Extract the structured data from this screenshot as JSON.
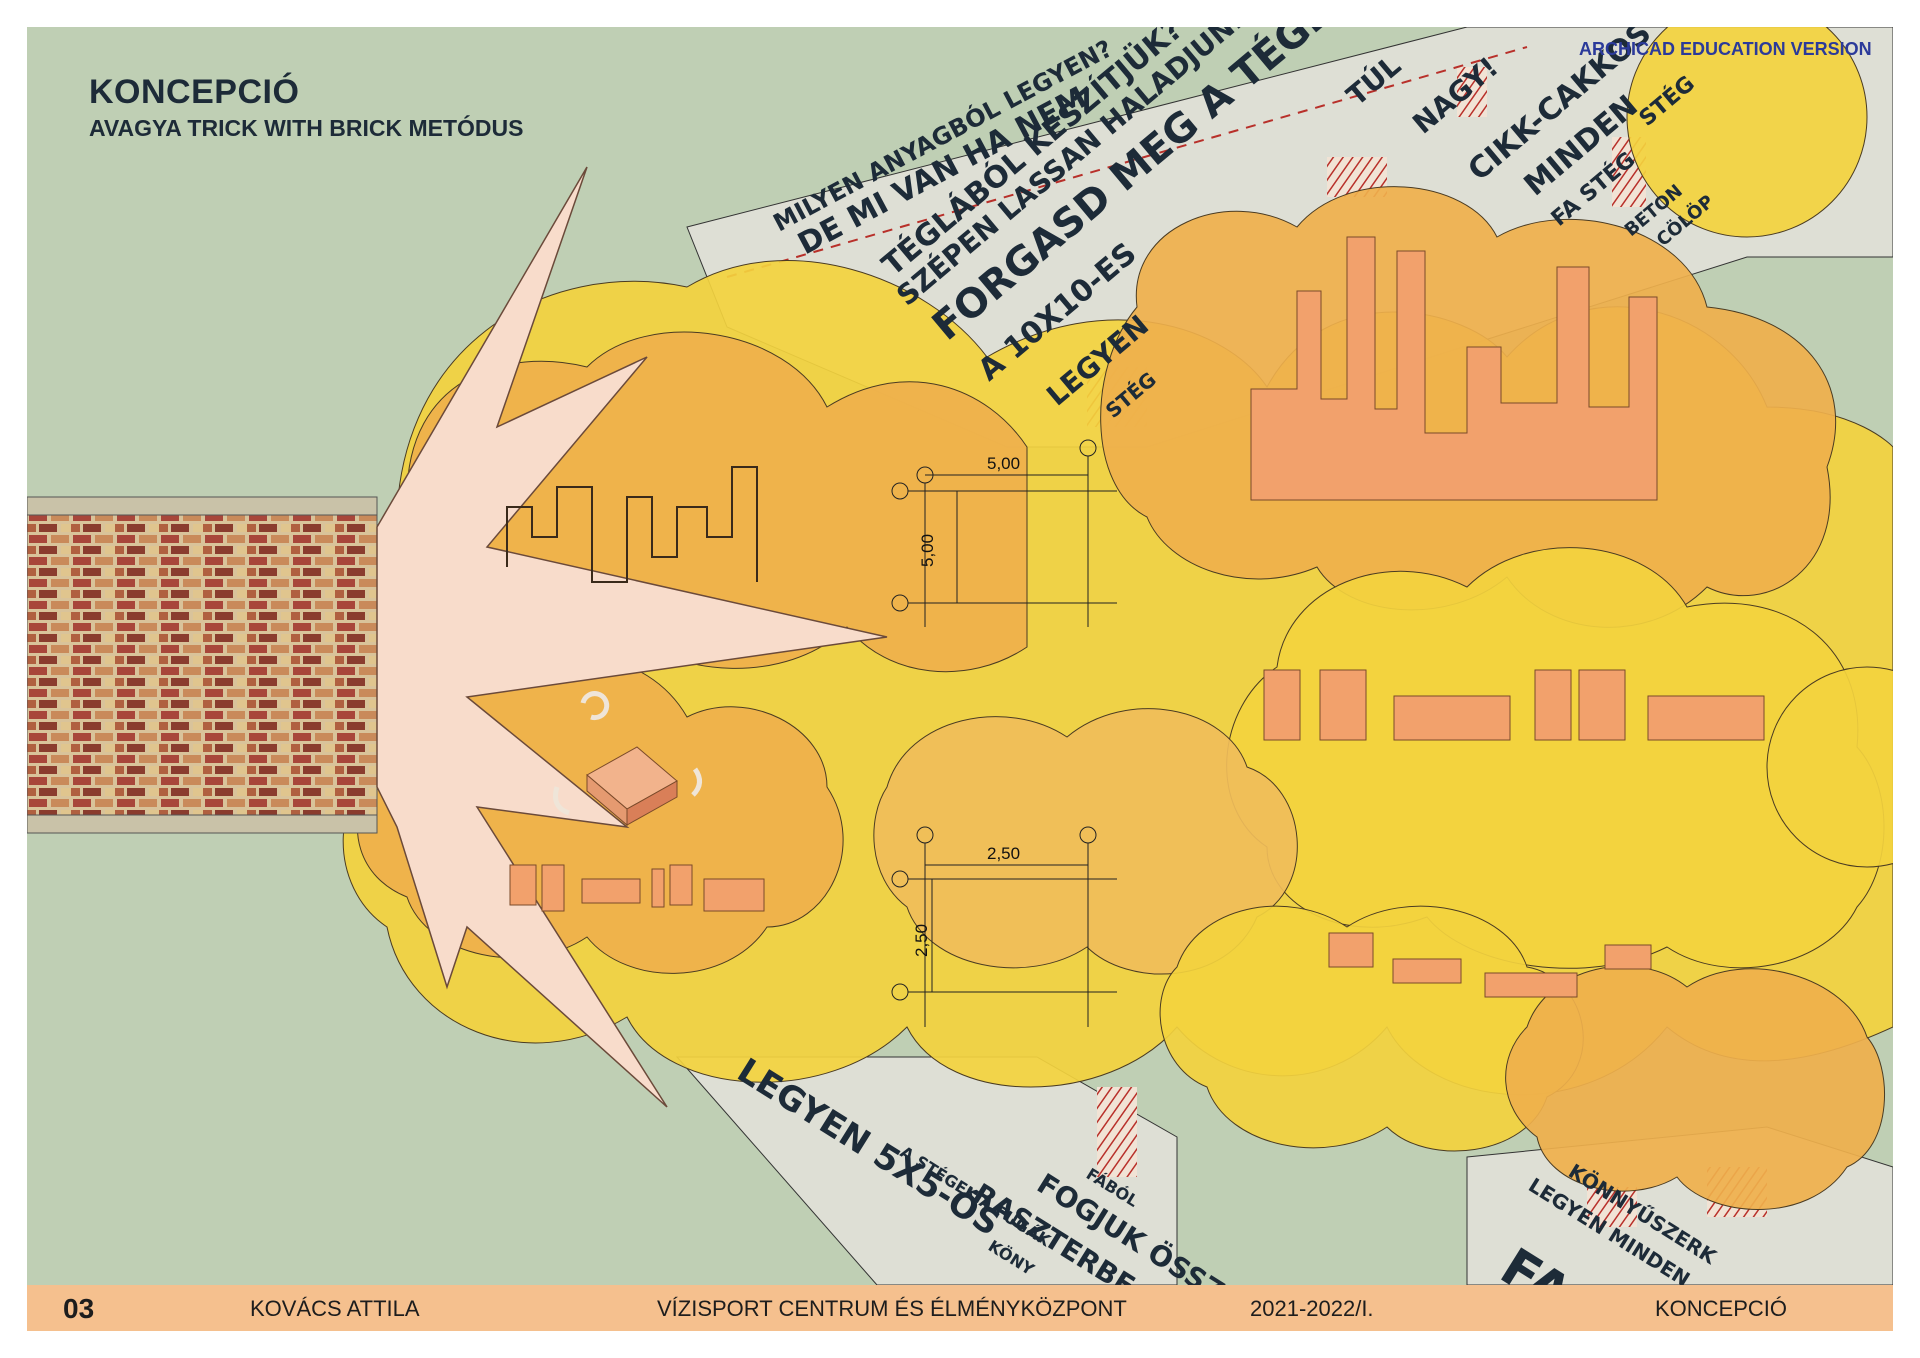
{
  "header": {
    "title": "KONCEPCIÓ",
    "subtitle": "AVAGYA TRICK WITH BRICK METÓDUS",
    "watermark": "ARCHICAD EDUCATION VERSION"
  },
  "dimensions": {
    "large_width": "5,00",
    "large_height": "5,00",
    "small_width": "2,50",
    "small_height": "2,50"
  },
  "slogans_top": [
    "MILYEN ANYAGBÓL LEGYEN?",
    "DE MI VAN HA NEM",
    "TÉGLÁBÓL KÉSZÍTJÜK?",
    "SZÉPEN LASSAN HALADJUNK",
    "FORGASD MEG A TÉGLÁT",
    "A 10X10-ES",
    "LEGYEN",
    "STÉG",
    "TÚL",
    "NAGY!",
    "CIKK-CAKKOS",
    "MINDEN",
    "STÉG",
    "FA STÉG",
    "BETON",
    "CÖLÖP"
  ],
  "slogans_bottom": [
    "LEGYEN 5X5-ÖS",
    "A STÉGEK A FUGÁK",
    "KÖNY",
    "RASZTERBE",
    "FÁBÓL",
    "FOGJUK ÖSSZ",
    "KÖNNYŰSZERK",
    "LEGYEN MINDEN",
    "FA"
  ],
  "footer": {
    "page_number": "03",
    "author": "KOVÁCS ATTILA",
    "project": "VÍZISPORT CENTRUM ÉS ÉLMÉNYKÖZPONT",
    "year": "2021-2022/I.",
    "section": "KONCEPCIÓ"
  },
  "colors": {
    "background": "#bfcfb4",
    "cloud_yellow": "#f3d23e",
    "cloud_orange": "#efb04c",
    "brick_shape": "#f2a16c",
    "footer": "#f5c08e",
    "text_dark": "#1d2b38"
  }
}
